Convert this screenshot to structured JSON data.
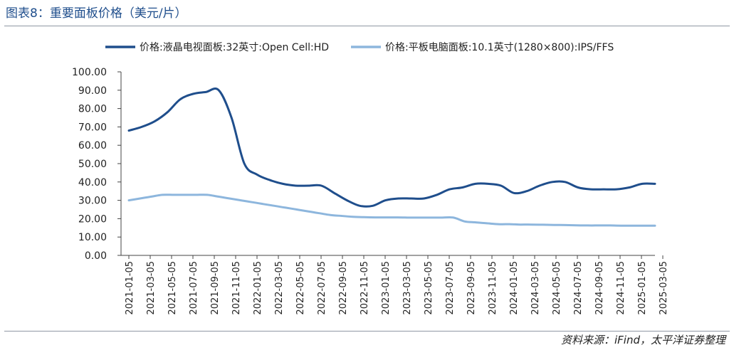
{
  "header": {
    "title": "图表8：重要面板价格（美元/片）"
  },
  "footer": {
    "source": "资料来源：iFind，太平洋证券整理"
  },
  "colors": {
    "series1": "#1f4e8c",
    "series2": "#8db6dd",
    "axis": "#444444"
  },
  "chart_data": {
    "type": "line",
    "title": "",
    "xlabel": "",
    "ylabel": "",
    "ylim": [
      0,
      100
    ],
    "yticks": [
      "0.00",
      "10.00",
      "20.00",
      "30.00",
      "40.00",
      "50.00",
      "60.00",
      "70.00",
      "80.00",
      "90.00",
      "100.00"
    ],
    "x_tick_labels": [
      "2021-01-05",
      "2021-03-05",
      "2021-05-05",
      "2021-07-05",
      "2021-09-05",
      "2021-11-05",
      "2022-01-05",
      "2022-03-05",
      "2022-05-05",
      "2022-07-05",
      "2022-09-05",
      "2022-11-05",
      "2023-01-05",
      "2023-03-05",
      "2023-05-05",
      "2023-07-05",
      "2023-09-05",
      "2023-11-05",
      "2024-01-05",
      "2024-03-05",
      "2024-05-05",
      "2024-07-05",
      "2024-09-05",
      "2024-11-05",
      "2025-01-05",
      "2025-03-05"
    ],
    "legend_position": "top",
    "series": [
      {
        "name": "价格:液晶电视面板:32英寸:Open Cell:HD",
        "values": [
          68,
          70,
          73,
          78,
          85,
          88,
          89,
          90,
          75,
          50,
          44,
          41,
          39,
          38,
          38,
          38,
          34,
          30,
          27,
          27,
          30,
          31,
          31,
          31,
          33,
          36,
          37,
          39,
          39,
          38,
          34,
          35,
          38,
          40,
          40,
          37,
          36,
          36,
          36,
          37,
          39,
          39
        ]
      },
      {
        "name": "价格:平板电脑面板:10.1英寸(1280×800):IPS/FFS",
        "values": [
          30,
          31,
          32,
          33,
          33,
          33,
          33,
          33,
          32,
          31,
          30,
          29,
          28,
          27,
          26,
          25,
          24,
          23,
          22,
          21.5,
          21,
          20.8,
          20.7,
          20.7,
          20.7,
          20.6,
          20.6,
          20.6,
          20.6,
          20.6,
          18.5,
          18,
          17.5,
          17,
          17,
          16.8,
          16.8,
          16.7,
          16.6,
          16.5,
          16.4,
          16.3,
          16.3,
          16.3,
          16.2,
          16.2,
          16.2,
          16.2
        ]
      }
    ]
  }
}
